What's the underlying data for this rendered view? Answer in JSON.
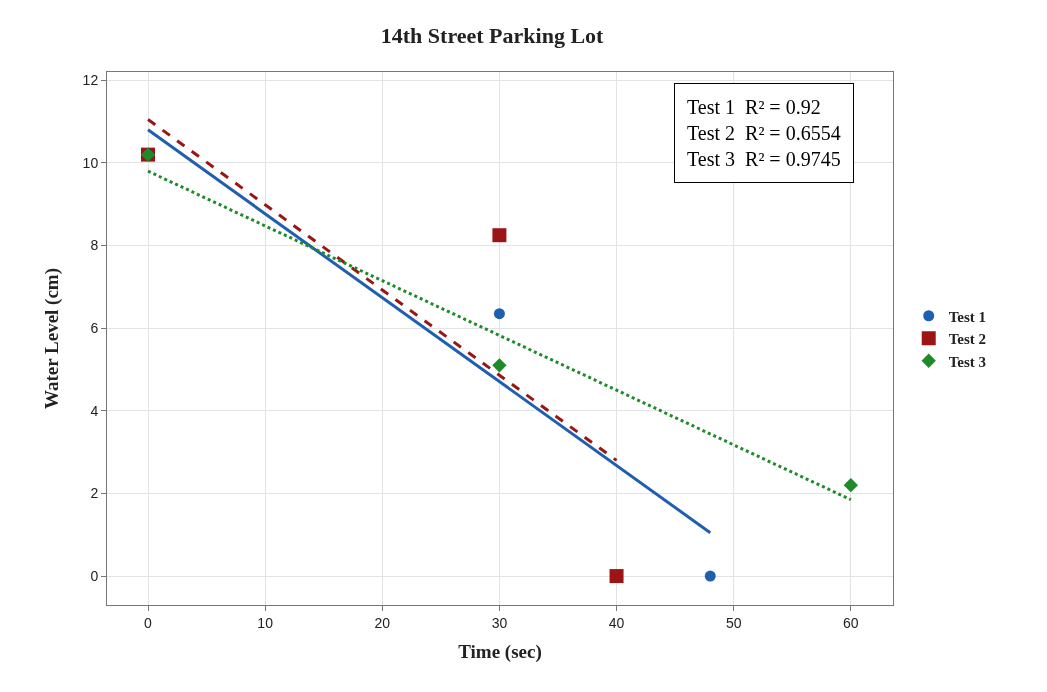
{
  "chart_data": {
    "type": "scatter",
    "title": "14th Street Parking Lot",
    "xlabel": "Time (sec)",
    "ylabel": "Water Level (cm)",
    "xlim": [
      -3.5,
      63.6
    ],
    "xticks": [
      0,
      10,
      20,
      30,
      40,
      50,
      60
    ],
    "ylim": [
      -0.7,
      12.2
    ],
    "yticks": [
      0,
      2,
      4,
      6,
      8,
      10,
      12
    ],
    "grid": true,
    "legend": "right",
    "annotations": [
      "Test 1  R² = 0.92\nTest 2  R² = 0.6554\nTest 3  R² = 0.9745"
    ],
    "series": [
      {
        "name": "Test 1",
        "color": "#1f5fb0",
        "marker": "circle",
        "x": [
          30,
          48
        ],
        "values": [
          6.35,
          0
        ]
      },
      {
        "name": "Test 2",
        "color": "#9b1515",
        "marker": "square",
        "x": [
          0,
          30,
          40
        ],
        "values": [
          10.2,
          8.25,
          0
        ]
      },
      {
        "name": "Test 3",
        "color": "#1e8a2a",
        "marker": "diamond",
        "x": [
          0,
          30,
          60
        ],
        "values": [
          10.2,
          5.1,
          2.2
        ]
      },
      {
        "type": "line",
        "color": "#1f5fb0",
        "line_style": "solid",
        "x": [
          0,
          48
        ],
        "values": [
          10.8,
          1.05
        ]
      },
      {
        "type": "line",
        "color": "#9b1515",
        "line_style": "dashed",
        "x": [
          0,
          40
        ],
        "values": [
          11.05,
          2.8
        ]
      },
      {
        "type": "line",
        "color": "#1e8a2a",
        "line_style": "dotted",
        "x": [
          0,
          60
        ],
        "values": [
          9.8,
          1.85
        ]
      }
    ]
  }
}
